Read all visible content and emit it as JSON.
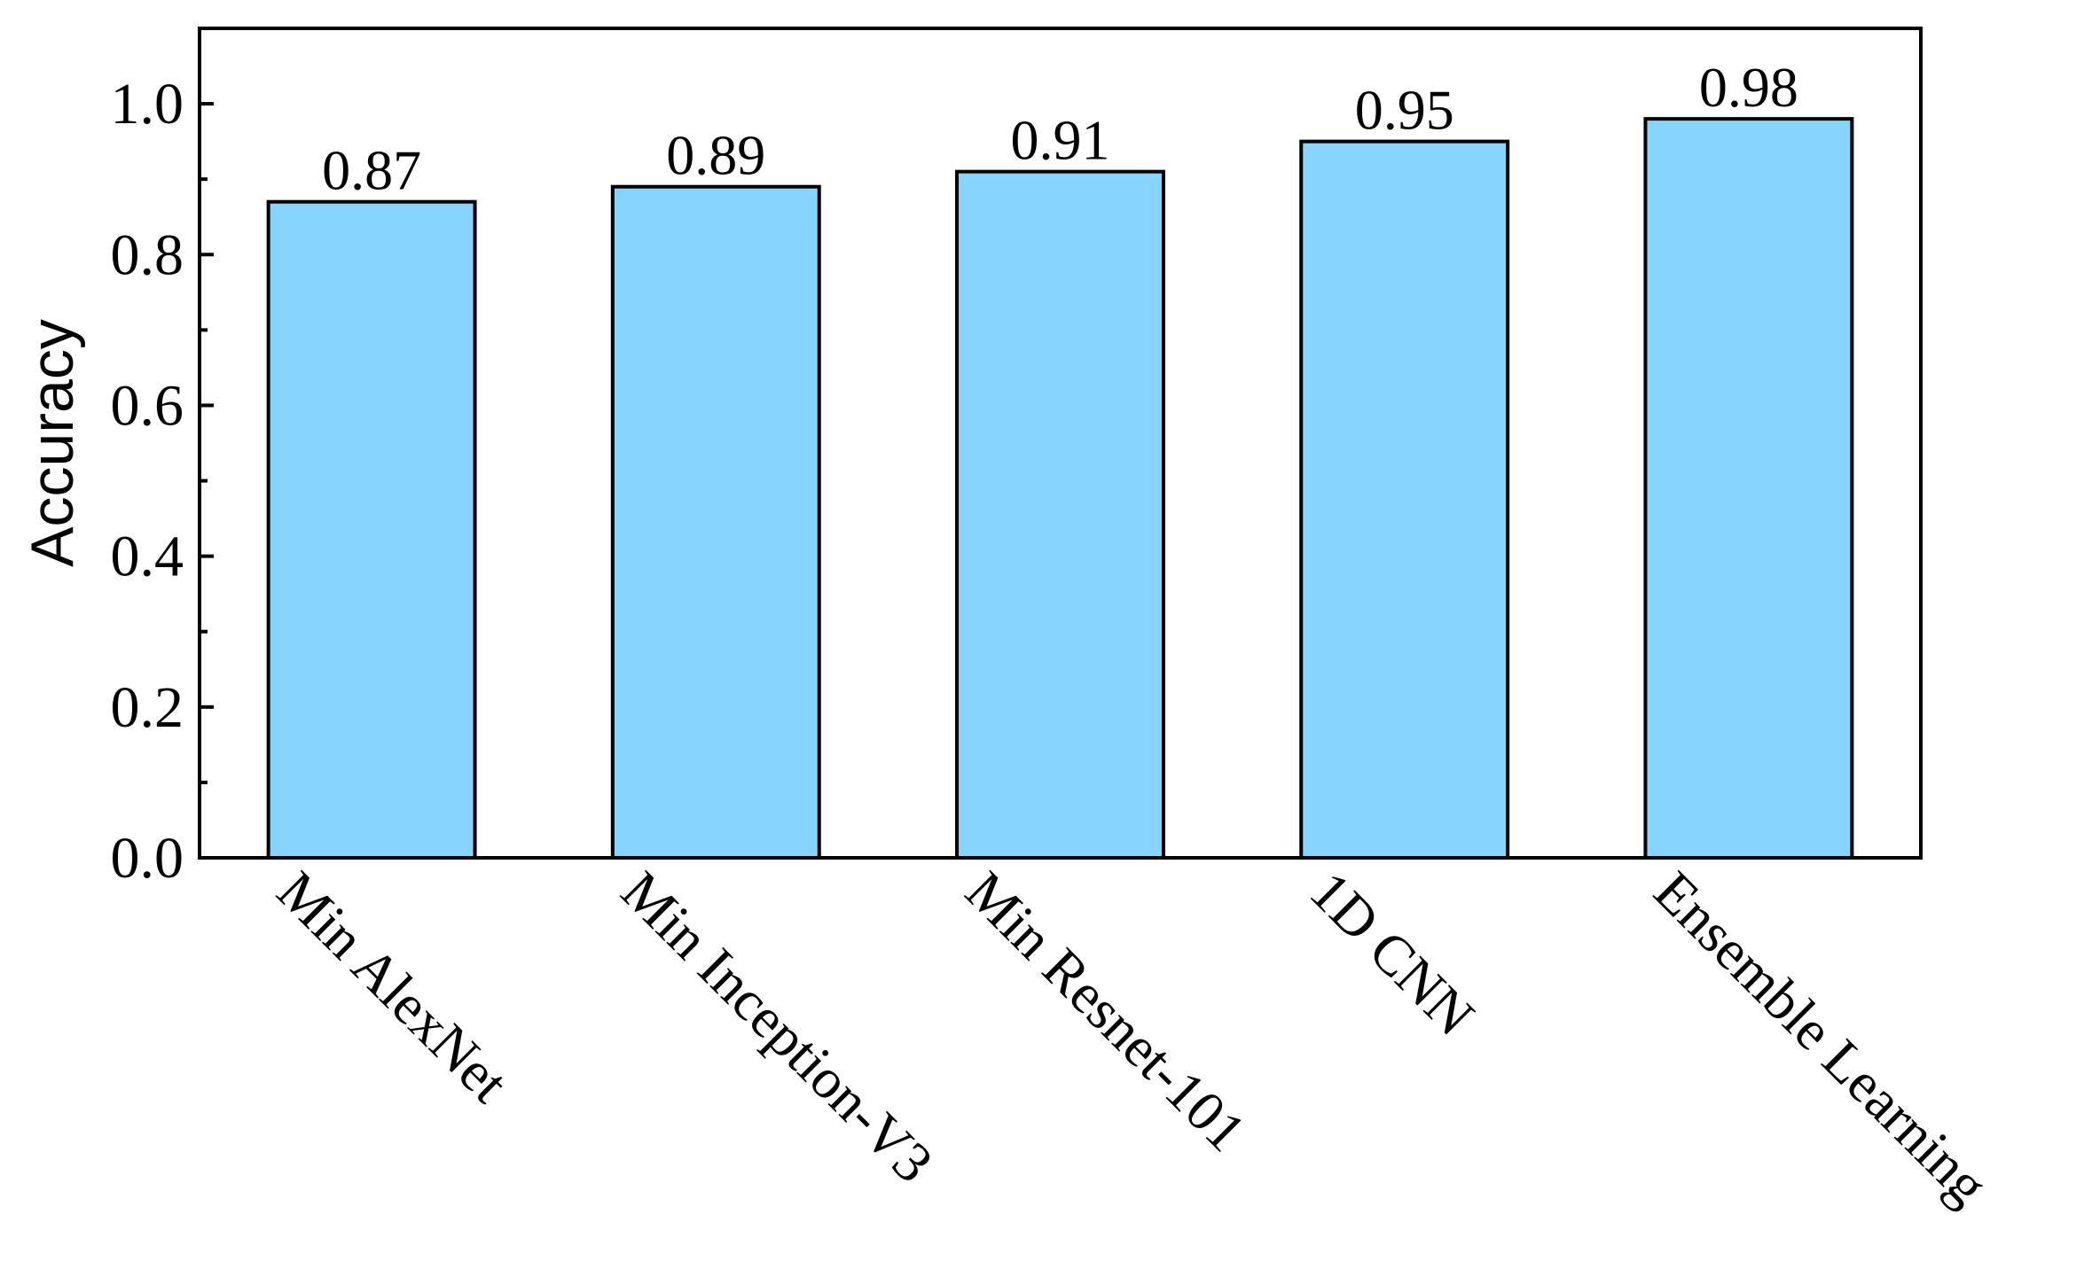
{
  "chart_data": {
    "type": "bar",
    "title": "",
    "xlabel": "",
    "ylabel": "Accuracy",
    "categories": [
      "Min AlexNet",
      "Min Inception-V3",
      "Min Resnet-101",
      "1D CNN",
      "Ensemble Learning"
    ],
    "values": [
      0.87,
      0.89,
      0.91,
      0.95,
      0.98
    ],
    "data_labels": [
      "0.87",
      "0.89",
      "0.91",
      "0.95",
      "0.98"
    ],
    "ylim": [
      0,
      1.1
    ],
    "yticks": [
      0.0,
      0.2,
      0.4,
      0.6,
      0.8,
      1.0
    ],
    "ytick_labels": [
      "0.0",
      "0.2",
      "0.4",
      "0.6",
      "0.8",
      "1.0"
    ],
    "grid": false,
    "legend": "none",
    "colors": {
      "bar_fill": "#87D4FF",
      "bar_stroke": "#000000",
      "axis": "#000000"
    }
  }
}
